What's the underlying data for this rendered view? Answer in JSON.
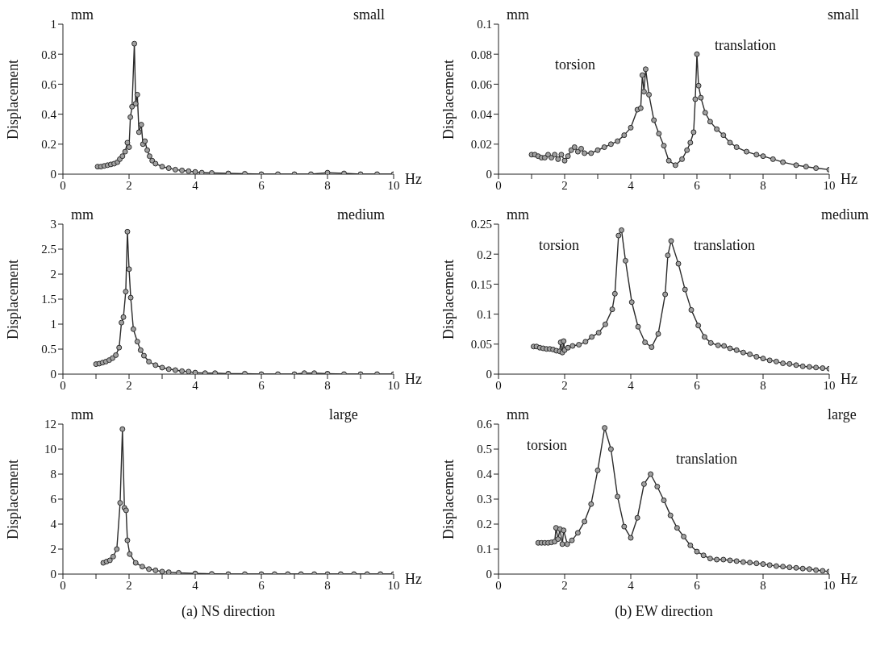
{
  "chart_data": [
    {
      "type": "line",
      "xlabel": "Hz",
      "ylabel": "Displacement",
      "color": "#2b2b2b",
      "marker": "circle",
      "line_style": "solid",
      "xlim": [
        0,
        10
      ],
      "ylim": [
        0,
        1
      ],
      "xticks": [
        0,
        2,
        4,
        6,
        8,
        10
      ],
      "yticks": [
        0,
        0.2,
        0.4,
        0.6,
        0.8,
        1
      ],
      "annotations": [
        "mm",
        "small"
      ],
      "x": [
        1.05,
        1.15,
        1.25,
        1.35,
        1.45,
        1.55,
        1.65,
        1.72,
        1.8,
        1.88,
        1.95,
        2.0,
        2.04,
        2.09,
        2.16,
        2.2,
        2.25,
        2.3,
        2.37,
        2.42,
        2.48,
        2.55,
        2.62,
        2.7,
        2.8,
        3.0,
        3.2,
        3.4,
        3.6,
        3.8,
        4.0,
        4.2,
        4.5,
        5.0,
        5.5,
        6.0,
        6.5,
        7.0,
        7.5,
        8.0,
        8.5,
        9.0,
        9.5,
        10.0
      ],
      "values": [
        0.05,
        0.05,
        0.055,
        0.06,
        0.065,
        0.07,
        0.08,
        0.1,
        0.12,
        0.15,
        0.21,
        0.18,
        0.38,
        0.45,
        0.87,
        0.47,
        0.53,
        0.28,
        0.33,
        0.2,
        0.22,
        0.16,
        0.12,
        0.09,
        0.07,
        0.05,
        0.04,
        0.03,
        0.025,
        0.02,
        0.015,
        0.01,
        0.008,
        0.005,
        0.003,
        0,
        0,
        0,
        0,
        0.01,
        0.005,
        0,
        0,
        0
      ]
    },
    {
      "type": "line",
      "xlabel": "Hz",
      "ylabel": "Displacement",
      "color": "#2b2b2b",
      "marker": "circle",
      "line_style": "solid",
      "xlim": [
        0,
        10
      ],
      "ylim": [
        0,
        0.1
      ],
      "xticks": [
        0,
        {
          "value": 1,
          "label": null
        },
        2,
        {
          "value": 3,
          "label": null
        },
        4,
        {
          "value": 5,
          "label": null
        },
        6,
        {
          "value": 7,
          "label": null
        },
        8,
        {
          "value": 9,
          "label": null
        },
        10
      ],
      "yticks": [
        0,
        0.02,
        0.04,
        0.06,
        0.08,
        0.1
      ],
      "annotations": [
        "mm",
        "small",
        "torsion",
        "translation"
      ],
      "x": [
        1.0,
        1.1,
        1.2,
        1.3,
        1.4,
        1.5,
        1.6,
        1.7,
        1.8,
        1.9,
        2.0,
        2.1,
        2.2,
        2.3,
        2.4,
        2.5,
        2.6,
        2.8,
        3.0,
        3.2,
        3.4,
        3.6,
        3.8,
        4.0,
        4.2,
        4.3,
        4.35,
        4.4,
        4.45,
        4.55,
        4.7,
        4.85,
        5.0,
        5.15,
        5.35,
        5.55,
        5.7,
        5.8,
        5.9,
        5.95,
        6.0,
        6.05,
        6.12,
        6.25,
        6.4,
        6.6,
        6.8,
        7.0,
        7.2,
        7.5,
        7.8,
        8.0,
        8.3,
        8.6,
        9.0,
        9.3,
        9.6,
        10.0
      ],
      "values": [
        0.013,
        0.013,
        0.012,
        0.011,
        0.011,
        0.013,
        0.011,
        0.013,
        0.01,
        0.013,
        0.009,
        0.012,
        0.016,
        0.018,
        0.015,
        0.017,
        0.014,
        0.014,
        0.016,
        0.018,
        0.02,
        0.022,
        0.026,
        0.031,
        0.043,
        0.044,
        0.066,
        0.055,
        0.07,
        0.053,
        0.036,
        0.027,
        0.019,
        0.009,
        0.006,
        0.01,
        0.016,
        0.021,
        0.028,
        0.05,
        0.08,
        0.059,
        0.051,
        0.041,
        0.035,
        0.03,
        0.026,
        0.021,
        0.018,
        0.015,
        0.013,
        0.012,
        0.01,
        0.008,
        0.006,
        0.005,
        0.004,
        0.003
      ]
    },
    {
      "type": "line",
      "xlabel": "Hz",
      "ylabel": "Displacement",
      "color": "#2b2b2b",
      "marker": "circle",
      "line_style": "solid",
      "xlim": [
        0,
        10
      ],
      "ylim": [
        0,
        3
      ],
      "xticks": [
        0,
        {
          "value": 1,
          "label": null
        },
        2,
        {
          "value": 3,
          "label": null
        },
        4,
        {
          "value": 5,
          "label": null
        },
        6,
        {
          "value": 7,
          "label": null
        },
        8,
        {
          "value": 9,
          "label": null
        },
        10
      ],
      "yticks": [
        0,
        0.5,
        1,
        1.5,
        2,
        2.5,
        3
      ],
      "annotations": [
        "mm",
        "medium"
      ],
      "x": [
        1.0,
        1.1,
        1.2,
        1.3,
        1.4,
        1.5,
        1.6,
        1.7,
        1.77,
        1.83,
        1.9,
        1.95,
        2.0,
        2.05,
        2.13,
        2.25,
        2.35,
        2.45,
        2.6,
        2.8,
        3.0,
        3.2,
        3.4,
        3.6,
        3.8,
        4.0,
        4.3,
        4.6,
        5.0,
        5.5,
        6.0,
        6.5,
        7.0,
        7.3,
        7.6,
        8.0,
        8.5,
        9.0,
        9.5,
        10.0
      ],
      "values": [
        0.2,
        0.21,
        0.23,
        0.25,
        0.28,
        0.32,
        0.38,
        0.53,
        1.03,
        1.14,
        1.65,
        2.85,
        2.1,
        1.53,
        0.9,
        0.65,
        0.48,
        0.37,
        0.25,
        0.18,
        0.13,
        0.1,
        0.08,
        0.06,
        0.05,
        0.03,
        0.02,
        0.02,
        0.01,
        0.01,
        0,
        0,
        0,
        0.02,
        0.02,
        0.01,
        0,
        0,
        0,
        0
      ]
    },
    {
      "type": "line",
      "xlabel": "Hz",
      "ylabel": "Displacement",
      "color": "#2b2b2b",
      "marker": "circle",
      "line_style": "solid",
      "xlim": [
        0,
        10
      ],
      "ylim": [
        0,
        0.25
      ],
      "xticks": [
        0,
        2,
        4,
        6,
        8,
        10
      ],
      "yticks": [
        0,
        0.05,
        0.1,
        0.15,
        0.2,
        0.25
      ],
      "annotations": [
        "mm",
        "medium",
        "torsion",
        "translation"
      ],
      "x": [
        1.06,
        1.15,
        1.25,
        1.35,
        1.45,
        1.55,
        1.65,
        1.75,
        1.85,
        1.88,
        1.93,
        1.97,
        2.0,
        2.1,
        2.24,
        2.43,
        2.63,
        2.82,
        3.03,
        3.23,
        3.44,
        3.52,
        3.63,
        3.72,
        3.84,
        4.03,
        4.22,
        4.43,
        4.63,
        4.83,
        5.04,
        5.12,
        5.22,
        5.44,
        5.64,
        5.83,
        6.04,
        6.23,
        6.42,
        6.64,
        6.82,
        7.0,
        7.2,
        7.4,
        7.6,
        7.8,
        8.0,
        8.2,
        8.4,
        8.6,
        8.8,
        9.0,
        9.2,
        9.4,
        9.6,
        9.8,
        10.0
      ],
      "values": [
        0.046,
        0.046,
        0.044,
        0.043,
        0.042,
        0.042,
        0.041,
        0.039,
        0.038,
        0.053,
        0.036,
        0.055,
        0.04,
        0.044,
        0.047,
        0.049,
        0.054,
        0.062,
        0.069,
        0.083,
        0.108,
        0.134,
        0.231,
        0.24,
        0.189,
        0.12,
        0.079,
        0.053,
        0.045,
        0.067,
        0.133,
        0.198,
        0.222,
        0.184,
        0.141,
        0.107,
        0.081,
        0.062,
        0.052,
        0.048,
        0.047,
        0.043,
        0.04,
        0.036,
        0.033,
        0.029,
        0.026,
        0.023,
        0.021,
        0.018,
        0.017,
        0.015,
        0.013,
        0.012,
        0.011,
        0.01,
        0.009
      ]
    },
    {
      "type": "line",
      "xlabel": "Hz",
      "ylabel": "Displacement",
      "color": "#2b2b2b",
      "marker": "circle",
      "line_style": "solid",
      "xlim": [
        0,
        10
      ],
      "ylim": [
        0,
        12
      ],
      "xticks": [
        0,
        {
          "value": 1,
          "label": null
        },
        2,
        {
          "value": 3,
          "label": null
        },
        4,
        {
          "value": 5,
          "label": null
        },
        6,
        {
          "value": 7,
          "label": null
        },
        8,
        {
          "value": 9,
          "label": null
        },
        10
      ],
      "yticks": [
        0,
        2,
        4,
        6,
        8,
        10,
        12
      ],
      "annotations": [
        "mm",
        "large",
        "(a) NS direction"
      ],
      "x": [
        1.22,
        1.32,
        1.42,
        1.52,
        1.63,
        1.73,
        1.8,
        1.86,
        1.91,
        1.95,
        2.02,
        2.2,
        2.4,
        2.6,
        2.8,
        3.0,
        3.2,
        3.5,
        4.0,
        4.5,
        5.0,
        5.5,
        6.0,
        6.4,
        6.8,
        7.2,
        7.6,
        8.0,
        8.4,
        8.8,
        9.2,
        9.6,
        10.0
      ],
      "values": [
        0.9,
        1.0,
        1.1,
        1.4,
        2.0,
        5.7,
        11.6,
        5.3,
        5.1,
        2.7,
        1.6,
        0.9,
        0.6,
        0.4,
        0.3,
        0.2,
        0.15,
        0.1,
        0.05,
        0.02,
        0,
        0,
        0,
        0,
        0,
        0,
        0,
        0,
        0,
        0,
        0,
        0,
        0
      ]
    },
    {
      "type": "line",
      "xlabel": "Hz",
      "ylabel": "Displacement",
      "color": "#2b2b2b",
      "marker": "circle",
      "line_style": "solid",
      "xlim": [
        0,
        10
      ],
      "ylim": [
        0,
        0.6
      ],
      "xticks": [
        0,
        2,
        4,
        6,
        8,
        10
      ],
      "yticks": [
        0,
        0.1,
        0.2,
        0.3,
        0.4,
        0.5,
        0.6
      ],
      "annotations": [
        "mm",
        "large",
        "torsion",
        "translation",
        "(b) EW direction"
      ],
      "x": [
        1.2,
        1.3,
        1.4,
        1.5,
        1.6,
        1.7,
        1.74,
        1.8,
        1.86,
        1.93,
        1.97,
        2.08,
        2.22,
        2.4,
        2.6,
        2.8,
        3.0,
        3.21,
        3.4,
        3.6,
        3.8,
        4.0,
        4.2,
        4.4,
        4.6,
        4.8,
        5.0,
        5.2,
        5.4,
        5.6,
        5.8,
        6.0,
        6.2,
        6.4,
        6.6,
        6.8,
        7.0,
        7.2,
        7.4,
        7.6,
        7.8,
        8.0,
        8.2,
        8.4,
        8.6,
        8.8,
        9.0,
        9.2,
        9.4,
        9.6,
        9.8,
        10.0
      ],
      "values": [
        0.125,
        0.125,
        0.125,
        0.125,
        0.127,
        0.13,
        0.185,
        0.14,
        0.18,
        0.12,
        0.175,
        0.12,
        0.135,
        0.165,
        0.21,
        0.28,
        0.415,
        0.585,
        0.5,
        0.31,
        0.19,
        0.145,
        0.225,
        0.36,
        0.4,
        0.35,
        0.295,
        0.235,
        0.185,
        0.15,
        0.115,
        0.09,
        0.075,
        0.062,
        0.058,
        0.058,
        0.055,
        0.052,
        0.048,
        0.046,
        0.043,
        0.04,
        0.036,
        0.032,
        0.03,
        0.027,
        0.025,
        0.022,
        0.02,
        0.016,
        0.013,
        0.01
      ]
    }
  ]
}
